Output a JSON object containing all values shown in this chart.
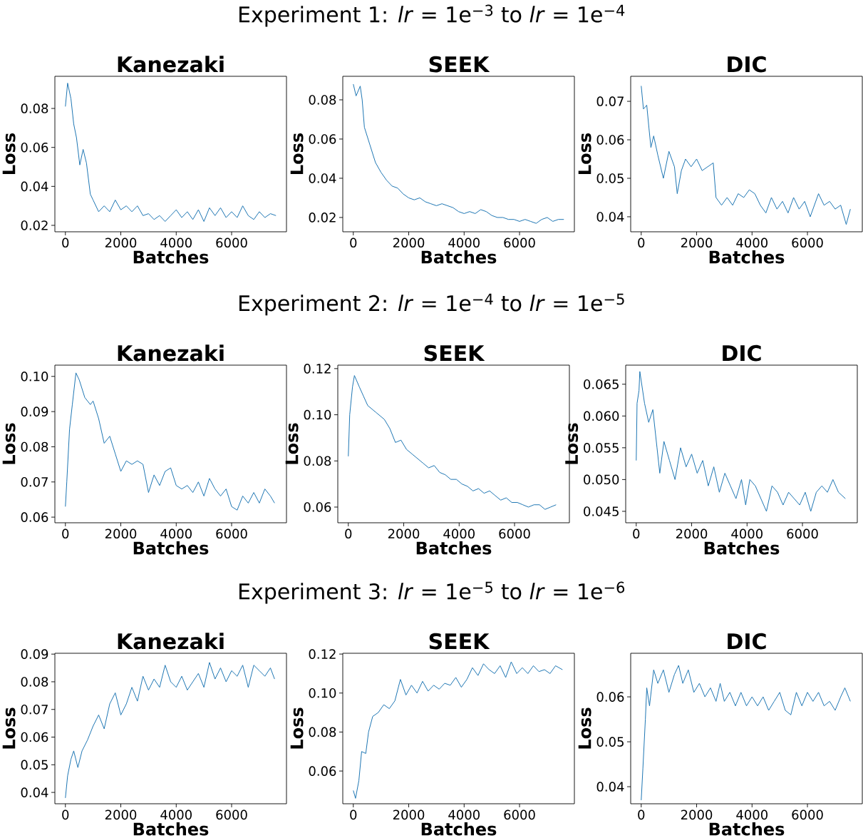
{
  "chart_data": [
    {
      "type": "line",
      "title": "Kanezaki",
      "xlabel": "Batches",
      "ylabel": "Loss",
      "color": "#1f77b4",
      "marker": "none",
      "xlim": [
        -380,
        7980
      ],
      "ylim": [
        0.0167,
        0.0965
      ],
      "xticks": [
        0,
        2000,
        4000,
        6000
      ],
      "yticks": [
        0.02,
        0.04,
        0.06,
        0.08
      ],
      "x": [
        0,
        80,
        200,
        300,
        400,
        520,
        640,
        760,
        900,
        1000,
        1200,
        1400,
        1600,
        1800,
        2000,
        2200,
        2400,
        2600,
        2800,
        3000,
        3200,
        3400,
        3600,
        3800,
        4000,
        4200,
        4400,
        4600,
        4800,
        5000,
        5200,
        5400,
        5600,
        5800,
        6000,
        6200,
        6400,
        6600,
        6800,
        7000,
        7200,
        7400,
        7600
      ],
      "values": [
        0.081,
        0.093,
        0.085,
        0.072,
        0.065,
        0.051,
        0.059,
        0.052,
        0.036,
        0.033,
        0.027,
        0.03,
        0.027,
        0.033,
        0.028,
        0.03,
        0.027,
        0.03,
        0.025,
        0.026,
        0.023,
        0.025,
        0.022,
        0.025,
        0.028,
        0.024,
        0.027,
        0.023,
        0.028,
        0.022,
        0.029,
        0.025,
        0.029,
        0.024,
        0.027,
        0.024,
        0.03,
        0.025,
        0.023,
        0.027,
        0.024,
        0.026,
        0.025
      ]
    },
    {
      "type": "line",
      "title": "SEEK",
      "xlabel": "Batches",
      "ylabel": "Loss",
      "color": "#1f77b4",
      "marker": "none",
      "annotations": [
        "Experiment 1: *lr* = 1e$^{−3}$ to *lr* = 1e$^{−4}$"
      ],
      "xlim": [
        -380,
        7980
      ],
      "ylim": [
        0.0127,
        0.092
      ],
      "xticks": [
        0,
        2000,
        4000,
        6000
      ],
      "yticks": [
        0.02,
        0.04,
        0.06,
        0.08
      ],
      "x": [
        0,
        100,
        250,
        320,
        400,
        600,
        800,
        1000,
        1200,
        1400,
        1600,
        1800,
        2000,
        2200,
        2400,
        2600,
        2800,
        3000,
        3200,
        3400,
        3600,
        3800,
        4000,
        4200,
        4400,
        4600,
        4800,
        5000,
        5200,
        5400,
        5600,
        5800,
        6000,
        6200,
        6400,
        6600,
        6800,
        7000,
        7200,
        7400,
        7600
      ],
      "values": [
        0.088,
        0.082,
        0.087,
        0.08,
        0.066,
        0.057,
        0.048,
        0.043,
        0.039,
        0.036,
        0.035,
        0.032,
        0.03,
        0.029,
        0.03,
        0.028,
        0.027,
        0.026,
        0.027,
        0.026,
        0.025,
        0.023,
        0.022,
        0.023,
        0.022,
        0.024,
        0.023,
        0.021,
        0.02,
        0.02,
        0.019,
        0.019,
        0.018,
        0.019,
        0.018,
        0.017,
        0.019,
        0.02,
        0.018,
        0.019,
        0.019
      ]
    },
    {
      "type": "line",
      "title": "DIC",
      "xlabel": "Batches",
      "ylabel": "Loss",
      "color": "#1f77b4",
      "marker": "none",
      "xlim": [
        -380,
        7980
      ],
      "ylim": [
        0.0361,
        0.0765
      ],
      "xticks": [
        0,
        2000,
        4000,
        6000
      ],
      "yticks": [
        0.04,
        0.05,
        0.06,
        0.07
      ],
      "x": [
        0,
        80,
        200,
        280,
        350,
        450,
        600,
        800,
        1000,
        1200,
        1300,
        1450,
        1600,
        1800,
        2000,
        2200,
        2400,
        2600,
        2700,
        2900,
        3100,
        3300,
        3500,
        3700,
        3900,
        4100,
        4300,
        4500,
        4700,
        4900,
        5100,
        5300,
        5500,
        5700,
        5900,
        6100,
        6400,
        6600,
        6800,
        7000,
        7200,
        7400,
        7550
      ],
      "values": [
        0.074,
        0.068,
        0.069,
        0.063,
        0.058,
        0.061,
        0.056,
        0.05,
        0.057,
        0.053,
        0.046,
        0.052,
        0.055,
        0.053,
        0.055,
        0.052,
        0.053,
        0.054,
        0.045,
        0.043,
        0.045,
        0.043,
        0.046,
        0.045,
        0.047,
        0.046,
        0.043,
        0.041,
        0.045,
        0.042,
        0.044,
        0.041,
        0.045,
        0.042,
        0.044,
        0.04,
        0.046,
        0.043,
        0.044,
        0.042,
        0.043,
        0.038,
        0.042
      ]
    },
    {
      "type": "line",
      "title": "Kanezaki",
      "xlabel": "Batches",
      "ylabel": "Loss",
      "color": "#1f77b4",
      "marker": "none",
      "xlim": [
        -380,
        7980
      ],
      "ylim": [
        0.0584,
        0.1032
      ],
      "xticks": [
        0,
        2000,
        4000,
        6000
      ],
      "yticks": [
        0.06,
        0.07,
        0.08,
        0.09,
        {
          "value": 0.1,
          "label": "0.10"
        }
      ],
      "x": [
        0,
        50,
        150,
        250,
        380,
        500,
        700,
        900,
        1000,
        1200,
        1400,
        1600,
        1800,
        2000,
        2200,
        2400,
        2600,
        2800,
        3000,
        3200,
        3400,
        3600,
        3800,
        4000,
        4200,
        4400,
        4600,
        4800,
        5000,
        5200,
        5400,
        5600,
        5800,
        6000,
        6200,
        6400,
        6600,
        6800,
        7000,
        7200,
        7400,
        7550
      ],
      "values": [
        0.063,
        0.07,
        0.085,
        0.092,
        0.101,
        0.099,
        0.094,
        0.092,
        0.093,
        0.088,
        0.081,
        0.083,
        0.078,
        0.073,
        0.076,
        0.075,
        0.076,
        0.075,
        0.067,
        0.072,
        0.069,
        0.073,
        0.074,
        0.069,
        0.068,
        0.069,
        0.067,
        0.07,
        0.066,
        0.071,
        0.068,
        0.066,
        0.068,
        0.063,
        0.062,
        0.066,
        0.064,
        0.067,
        0.064,
        0.068,
        0.066,
        0.064
      ]
    },
    {
      "type": "line",
      "title": "SEEK",
      "xlabel": "Batches",
      "ylabel": "Loss",
      "color": "#1f77b4",
      "marker": "none",
      "annotations": [
        "Experiment 2: *lr* = 1e$^{−4}$ to *lr* = 1e$^{−5}$"
      ],
      "xlim": [
        -380,
        7980
      ],
      "ylim": [
        0.0532,
        0.1215
      ],
      "xticks": [
        0,
        2000,
        4000,
        6000
      ],
      "yticks": [
        0.06,
        0.08,
        {
          "value": 0.1,
          "label": "0.10"
        },
        0.12
      ],
      "x": [
        0,
        50,
        150,
        220,
        400,
        550,
        700,
        1000,
        1300,
        1500,
        1700,
        1900,
        2100,
        2300,
        2500,
        2700,
        2900,
        3100,
        3300,
        3500,
        3700,
        3900,
        4100,
        4300,
        4500,
        4700,
        4900,
        5100,
        5300,
        5500,
        5700,
        5900,
        6100,
        6300,
        6500,
        6700,
        6900,
        7100,
        7300,
        7500
      ],
      "values": [
        0.082,
        0.1,
        0.112,
        0.117,
        0.112,
        0.108,
        0.104,
        0.101,
        0.098,
        0.094,
        0.088,
        0.089,
        0.085,
        0.083,
        0.081,
        0.079,
        0.077,
        0.078,
        0.075,
        0.074,
        0.072,
        0.072,
        0.07,
        0.069,
        0.067,
        0.068,
        0.066,
        0.067,
        0.065,
        0.063,
        0.064,
        0.062,
        0.062,
        0.061,
        0.06,
        0.061,
        0.061,
        0.059,
        0.06,
        0.061
      ]
    },
    {
      "type": "line",
      "title": "DIC",
      "xlabel": "Batches",
      "ylabel": "Loss",
      "color": "#1f77b4",
      "marker": "none",
      "xlim": [
        -380,
        7980
      ],
      "ylim": [
        0.0432,
        0.068
      ],
      "xticks": [
        0,
        2000,
        4000,
        6000
      ],
      "yticks": [
        0.045,
        {
          "value": 0.05,
          "label": "0.050"
        },
        0.055,
        {
          "value": 0.06,
          "label": "0.060"
        },
        0.065
      ],
      "x": [
        0,
        30,
        100,
        130,
        300,
        450,
        600,
        750,
        850,
        1000,
        1200,
        1400,
        1600,
        1800,
        2000,
        2200,
        2400,
        2600,
        2800,
        3000,
        3200,
        3400,
        3600,
        3800,
        3950,
        4100,
        4300,
        4500,
        4700,
        4900,
        5100,
        5300,
        5500,
        5700,
        5900,
        6100,
        6300,
        6500,
        6700,
        6900,
        7100,
        7300,
        7550
      ],
      "values": [
        0.053,
        0.062,
        0.064,
        0.067,
        0.062,
        0.059,
        0.061,
        0.055,
        0.051,
        0.056,
        0.053,
        0.05,
        0.055,
        0.052,
        0.054,
        0.051,
        0.053,
        0.049,
        0.052,
        0.048,
        0.051,
        0.049,
        0.047,
        0.05,
        0.046,
        0.05,
        0.049,
        0.047,
        0.045,
        0.049,
        0.048,
        0.046,
        0.048,
        0.047,
        0.046,
        0.048,
        0.045,
        0.048,
        0.049,
        0.048,
        0.05,
        0.048,
        0.047
      ]
    },
    {
      "type": "line",
      "title": "Kanezaki",
      "xlabel": "Batches",
      "ylabel": "Loss",
      "color": "#1f77b4",
      "marker": "none",
      "xlim": [
        -380,
        7980
      ],
      "ylim": [
        0.0359,
        0.0903
      ],
      "xticks": [
        0,
        2000,
        4000,
        6000
      ],
      "yticks": [
        0.04,
        0.05,
        0.06,
        0.07,
        0.08,
        0.09
      ],
      "x": [
        0,
        80,
        200,
        300,
        450,
        600,
        800,
        1000,
        1200,
        1400,
        1600,
        1800,
        2000,
        2200,
        2400,
        2600,
        2800,
        3000,
        3200,
        3400,
        3600,
        3800,
        4000,
        4200,
        4400,
        4600,
        4800,
        5000,
        5200,
        5400,
        5600,
        5800,
        6000,
        6200,
        6400,
        6600,
        6800,
        7000,
        7200,
        7400,
        7550
      ],
      "values": [
        0.038,
        0.046,
        0.052,
        0.055,
        0.049,
        0.055,
        0.059,
        0.064,
        0.068,
        0.063,
        0.072,
        0.076,
        0.068,
        0.072,
        0.078,
        0.073,
        0.082,
        0.077,
        0.081,
        0.078,
        0.086,
        0.08,
        0.078,
        0.082,
        0.077,
        0.08,
        0.083,
        0.078,
        0.087,
        0.081,
        0.085,
        0.08,
        0.084,
        0.082,
        0.086,
        0.078,
        0.086,
        0.084,
        0.082,
        0.085,
        0.081
      ]
    },
    {
      "type": "line",
      "title": "SEEK",
      "xlabel": "Batches",
      "ylabel": "Loss",
      "color": "#1f77b4",
      "marker": "none",
      "annotations": [
        "Experiment 3: *lr* = 1e$^{−5}$ to *lr* = 1e$^{−6}$"
      ],
      "xlim": [
        -380,
        7980
      ],
      "ylim": [
        0.0432,
        0.1204
      ],
      "xticks": [
        0,
        2000,
        4000,
        6000
      ],
      "yticks": [
        0.06,
        0.08,
        {
          "value": 0.1,
          "label": "0.10"
        },
        0.12
      ],
      "x": [
        0,
        80,
        200,
        300,
        450,
        550,
        700,
        900,
        1100,
        1300,
        1500,
        1700,
        1900,
        2100,
        2300,
        2500,
        2700,
        2900,
        3100,
        3300,
        3500,
        3700,
        3900,
        4100,
        4300,
        4500,
        4700,
        4900,
        5100,
        5300,
        5500,
        5700,
        5900,
        6100,
        6300,
        6500,
        6700,
        6900,
        7100,
        7300,
        7550
      ],
      "values": [
        0.05,
        0.046,
        0.055,
        0.07,
        0.069,
        0.08,
        0.088,
        0.09,
        0.094,
        0.092,
        0.096,
        0.107,
        0.099,
        0.104,
        0.1,
        0.106,
        0.101,
        0.104,
        0.102,
        0.105,
        0.104,
        0.108,
        0.103,
        0.107,
        0.113,
        0.109,
        0.115,
        0.112,
        0.11,
        0.114,
        0.108,
        0.116,
        0.11,
        0.113,
        0.11,
        0.114,
        0.111,
        0.112,
        0.11,
        0.114,
        0.112
      ]
    },
    {
      "type": "line",
      "title": "DIC",
      "xlabel": "Batches",
      "ylabel": "Loss",
      "color": "#1f77b4",
      "marker": "none",
      "xlim": [
        -380,
        7980
      ],
      "ylim": [
        0.0362,
        0.0697
      ],
      "xticks": [
        0,
        2000,
        4000,
        6000
      ],
      "yticks": [
        0.04,
        0.05,
        0.06
      ],
      "x": [
        0,
        60,
        150,
        200,
        300,
        450,
        600,
        800,
        1000,
        1200,
        1350,
        1500,
        1700,
        1900,
        2100,
        2300,
        2500,
        2700,
        2850,
        3000,
        3200,
        3400,
        3600,
        3800,
        4000,
        4200,
        4400,
        4600,
        4800,
        5000,
        5200,
        5400,
        5600,
        5800,
        6000,
        6200,
        6400,
        6600,
        6800,
        7000,
        7200,
        7350,
        7550
      ],
      "values": [
        0.037,
        0.044,
        0.055,
        0.062,
        0.058,
        0.066,
        0.063,
        0.066,
        0.061,
        0.065,
        0.067,
        0.063,
        0.066,
        0.061,
        0.063,
        0.06,
        0.062,
        0.059,
        0.063,
        0.059,
        0.061,
        0.058,
        0.061,
        0.058,
        0.06,
        0.058,
        0.06,
        0.057,
        0.059,
        0.061,
        0.057,
        0.056,
        0.061,
        0.058,
        0.061,
        0.059,
        0.061,
        0.058,
        0.059,
        0.057,
        0.06,
        0.062,
        0.059
      ]
    }
  ]
}
